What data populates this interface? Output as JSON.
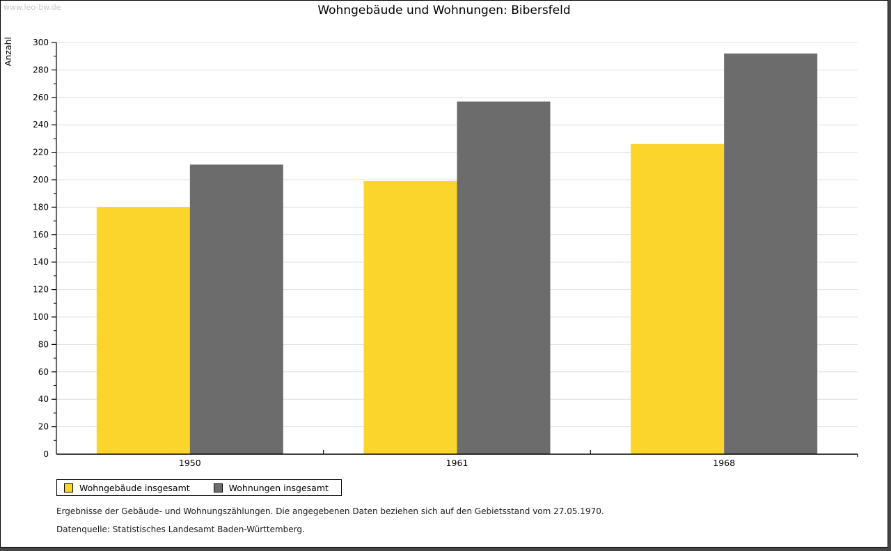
{
  "watermark": "www.leo-bw.de",
  "title": "Wohngebäude und Wohnungen: Bibersfeld",
  "chart_data": {
    "type": "bar",
    "title": "Wohngebäude und Wohnungen: Bibersfeld",
    "categories": [
      "1950",
      "1961",
      "1968"
    ],
    "series": [
      {
        "name": "Wohngebäude insgesamt",
        "color": "#FBD42C",
        "values": [
          180,
          199,
          226
        ]
      },
      {
        "name": "Wohnungen insgesamt",
        "color": "#6C6C6C",
        "values": [
          211,
          257,
          292
        ]
      }
    ],
    "xlabel": "",
    "ylabel": "Anzahl",
    "ylim": [
      0,
      300
    ],
    "ytick_major": 20,
    "ytick_minor": 10,
    "grid": true,
    "gridline_color": "#dfdfdf",
    "legend_position": "bottom-left"
  },
  "footer": {
    "line1": "Ergebnisse der Gebäude- und Wohnungszählungen. Die angegebenen Daten beziehen sich auf den Gebietsstand vom 27.05.1970.",
    "line2": "Datenquelle: Statistisches Landesamt Baden-Württemberg."
  },
  "colors": {
    "background": "#ffffff",
    "frame_edge": "#454545",
    "axis": "#000000",
    "watermark": "#c9c9c9"
  }
}
